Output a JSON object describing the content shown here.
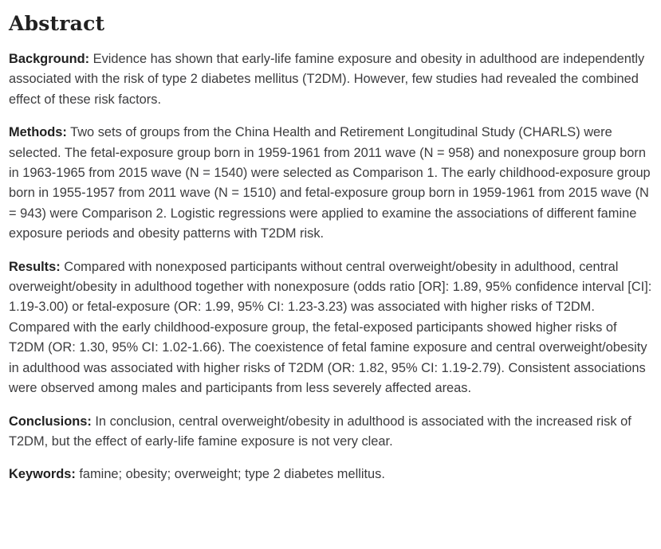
{
  "page": {
    "title": "Abstract"
  },
  "colors": {
    "background": "#ffffff",
    "heading_text": "#212121",
    "body_text": "#3c3c3e"
  },
  "sections": [
    {
      "label": "Background:",
      "text": " Evidence has shown that early-life famine exposure and obesity in adulthood are independently associated with the risk of type 2 diabetes mellitus (T2DM). However, few studies had revealed the combined effect of these risk factors."
    },
    {
      "label": "Methods:",
      "text": " Two sets of groups from the China Health and Retirement Longitudinal Study (CHARLS) were selected. The fetal-exposure group born in 1959-1961 from 2011 wave (N = 958) and nonexposure group born in 1963-1965 from 2015 wave (N = 1540) were selected as Comparison 1. The early childhood-exposure group born in 1955-1957 from 2011 wave (N = 1510) and fetal-exposure group born in 1959-1961 from 2015 wave (N = 943) were Comparison 2. Logistic regressions were applied to examine the associations of different famine exposure periods and obesity patterns with T2DM risk."
    },
    {
      "label": "Results:",
      "text": " Compared with nonexposed participants without central overweight/obesity in adulthood, central overweight/obesity in adulthood together with nonexposure (odds ratio [OR]: 1.89, 95% confidence interval [CI]: 1.19-3.00) or fetal-exposure (OR: 1.99, 95% CI: 1.23-3.23) was associated with higher risks of T2DM. Compared with the early childhood-exposure group, the fetal-exposed participants showed higher risks of T2DM (OR: 1.30, 95% CI: 1.02-1.66). The coexistence of fetal famine exposure and central overweight/obesity in adulthood was associated with higher risks of T2DM (OR: 1.82, 95% CI: 1.19-2.79). Consistent associations were observed among males and participants from less severely affected areas."
    },
    {
      "label": "Conclusions:",
      "text": " In conclusion, central overweight/obesity in adulthood is associated with the increased risk of T2DM, but the effect of early-life famine exposure is not very clear."
    },
    {
      "label": "Keywords:",
      "text": " famine; obesity; overweight; type 2 diabetes mellitus."
    }
  ]
}
